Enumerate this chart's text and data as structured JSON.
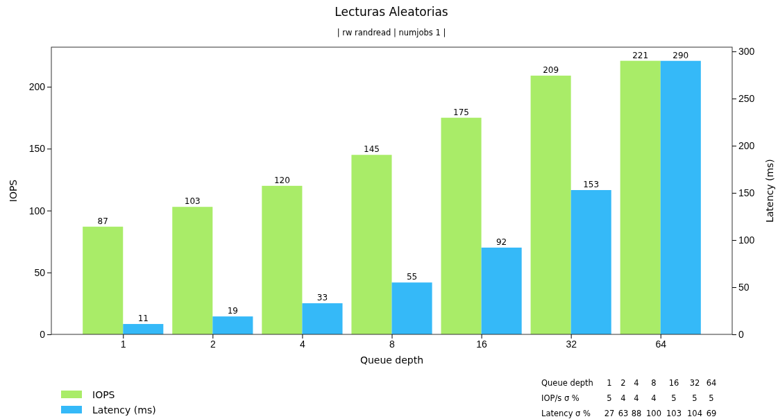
{
  "chart_data": {
    "type": "bar",
    "title": "Lecturas Aleatorias",
    "subtitle": "| rw randread | numjobs 1 |",
    "xlabel": "Queue depth",
    "ylabel": "IOPS",
    "y2label": "Latency (ms)",
    "categories": [
      "1",
      "2",
      "4",
      "8",
      "16",
      "32",
      "64"
    ],
    "series": [
      {
        "name": "IOPS",
        "color": "#a9ec68",
        "values": [
          87,
          103,
          120,
          145,
          175,
          209,
          221
        ]
      },
      {
        "name": "Latency (ms)",
        "color": "#35b9f8",
        "axis": "y2",
        "values": [
          11,
          19,
          33,
          55,
          92,
          153,
          290
        ]
      }
    ],
    "ylim": [
      0,
      232
    ],
    "yticks": [
      0,
      50,
      100,
      150,
      200
    ],
    "y2lim": [
      0,
      304.5
    ],
    "y2ticks": [
      0,
      50,
      100,
      150,
      200,
      250,
      300
    ],
    "data_labels": true,
    "legend": "bottom left",
    "annotations": [
      "Queue depth",
      "1",
      "2",
      "4",
      "8",
      "16",
      "32",
      "64",
      "IOP/s σ %",
      "5",
      "4",
      "4",
      "4",
      "5",
      "5",
      "5",
      "Latency σ %",
      "27",
      "63",
      "88",
      "100",
      "103",
      "104",
      "69"
    ]
  }
}
